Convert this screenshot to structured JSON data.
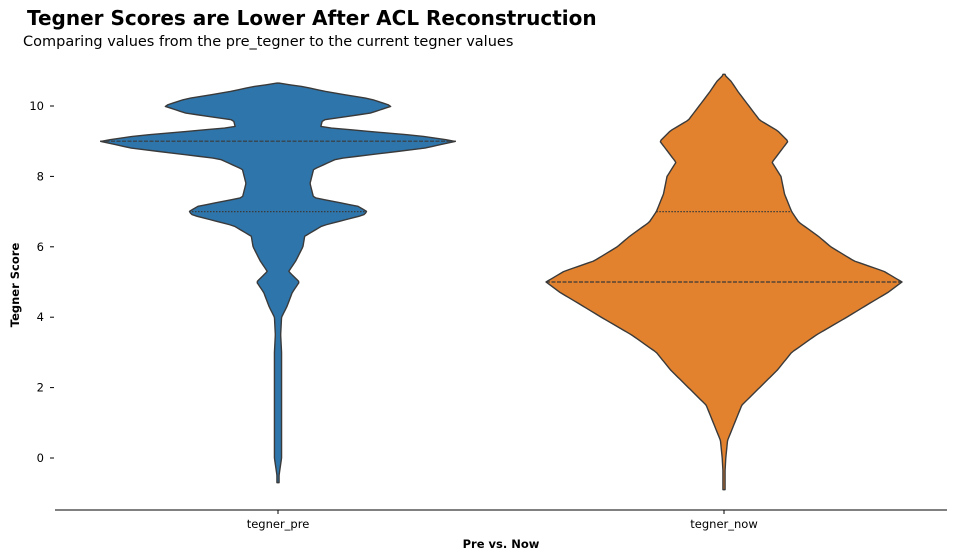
{
  "title": "Tegner Scores are Lower After ACL Reconstruction",
  "subtitle": "Comparing values from the pre_tegner to the current tegner values",
  "chart_data": {
    "type": "violin",
    "title": "Tegner Scores are Lower After ACL Reconstruction",
    "subtitle": "Comparing values from the pre_tegner to the current tegner values",
    "xlabel": "Pre vs. Now",
    "ylabel": "Tegner Score",
    "categories": [
      "tegner_pre",
      "tegner_now"
    ],
    "ylim": [
      -1.5,
      11
    ],
    "yticks": [
      0,
      2,
      4,
      6,
      8,
      10
    ],
    "grid": false,
    "legend": "none",
    "inner": "quartile",
    "series": [
      {
        "category": "tegner_pre",
        "color": "#2e75ab",
        "range": [
          -0.7,
          10.65
        ],
        "quartiles": {
          "q1": 7,
          "median": 9,
          "q3": 9
        },
        "density_profile": [
          [
            -0.7,
            0.0
          ],
          [
            0.0,
            0.02
          ],
          [
            1.0,
            0.02
          ],
          [
            2.0,
            0.02
          ],
          [
            3.0,
            0.02
          ],
          [
            3.5,
            0.015
          ],
          [
            4.0,
            0.02
          ],
          [
            4.3,
            0.05
          ],
          [
            4.7,
            0.08
          ],
          [
            5.0,
            0.12
          ],
          [
            5.3,
            0.06
          ],
          [
            5.6,
            0.1
          ],
          [
            6.0,
            0.14
          ],
          [
            6.3,
            0.15
          ],
          [
            6.6,
            0.25
          ],
          [
            6.9,
            0.48
          ],
          [
            7.0,
            0.5
          ],
          [
            7.15,
            0.45
          ],
          [
            7.4,
            0.2
          ],
          [
            7.8,
            0.18
          ],
          [
            8.0,
            0.19
          ],
          [
            8.2,
            0.2
          ],
          [
            8.5,
            0.33
          ],
          [
            8.8,
            0.82
          ],
          [
            9.0,
            1.0
          ],
          [
            9.15,
            0.8
          ],
          [
            9.4,
            0.24
          ],
          [
            9.6,
            0.25
          ],
          [
            9.8,
            0.52
          ],
          [
            10.0,
            0.64
          ],
          [
            10.2,
            0.52
          ],
          [
            10.4,
            0.28
          ],
          [
            10.55,
            0.14
          ],
          [
            10.65,
            0.0
          ]
        ]
      },
      {
        "category": "tegner_now",
        "color": "#e2822e",
        "range": [
          -0.9,
          10.9
        ],
        "quartiles": {
          "q1": 5,
          "median": 5,
          "q3": 7
        },
        "density_profile": [
          [
            -0.9,
            0.0
          ],
          [
            0.0,
            0.01
          ],
          [
            0.5,
            0.02
          ],
          [
            1.0,
            0.06
          ],
          [
            1.5,
            0.1
          ],
          [
            2.0,
            0.2
          ],
          [
            2.5,
            0.3
          ],
          [
            3.0,
            0.38
          ],
          [
            3.5,
            0.52
          ],
          [
            4.0,
            0.69
          ],
          [
            4.4,
            0.82
          ],
          [
            4.7,
            0.92
          ],
          [
            5.0,
            1.0
          ],
          [
            5.3,
            0.9
          ],
          [
            5.6,
            0.73
          ],
          [
            6.0,
            0.6
          ],
          [
            6.3,
            0.53
          ],
          [
            6.7,
            0.42
          ],
          [
            7.0,
            0.38
          ],
          [
            7.5,
            0.34
          ],
          [
            8.0,
            0.32
          ],
          [
            8.4,
            0.27
          ],
          [
            8.8,
            0.33
          ],
          [
            9.0,
            0.36
          ],
          [
            9.3,
            0.3
          ],
          [
            9.6,
            0.2
          ],
          [
            10.0,
            0.14
          ],
          [
            10.4,
            0.08
          ],
          [
            10.7,
            0.04
          ],
          [
            10.9,
            0.0
          ]
        ]
      }
    ]
  }
}
